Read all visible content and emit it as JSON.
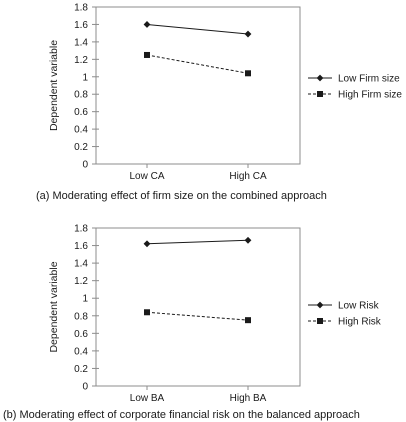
{
  "chart_data": [
    {
      "type": "line",
      "caption": "(a) Moderating effect of firm size on the combined approach",
      "ylabel": "Dependent variable",
      "categories": [
        "Low CA",
        "High CA"
      ],
      "yticks": [
        "0",
        "0.2",
        "0.4",
        "0.6",
        "0.8",
        "1",
        "1.2",
        "1.4",
        "1.6",
        "1.8"
      ],
      "ylim": [
        0,
        1.8
      ],
      "grid": false,
      "legend_position": "right",
      "series": [
        {
          "name": "Low Firm size",
          "values": [
            1.6,
            1.49
          ],
          "marker": "diamond",
          "line": "solid"
        },
        {
          "name": "High Firm size",
          "values": [
            1.25,
            1.04
          ],
          "marker": "square",
          "line": "dashed"
        }
      ]
    },
    {
      "type": "line",
      "caption": "(b) Moderating effect of corporate financial risk on the balanced approach",
      "ylabel": "Dependent variable",
      "categories": [
        "Low BA",
        "High BA"
      ],
      "yticks": [
        "0",
        "0.2",
        "0.4",
        "0.6",
        "0.8",
        "1",
        "1.2",
        "1.4",
        "1.6",
        "1.8"
      ],
      "ylim": [
        0,
        1.8
      ],
      "grid": false,
      "legend_position": "right",
      "series": [
        {
          "name": "Low Risk",
          "values": [
            1.62,
            1.66
          ],
          "marker": "diamond",
          "line": "solid"
        },
        {
          "name": "High Risk",
          "values": [
            0.84,
            0.75
          ],
          "marker": "square",
          "line": "dashed"
        }
      ]
    }
  ]
}
